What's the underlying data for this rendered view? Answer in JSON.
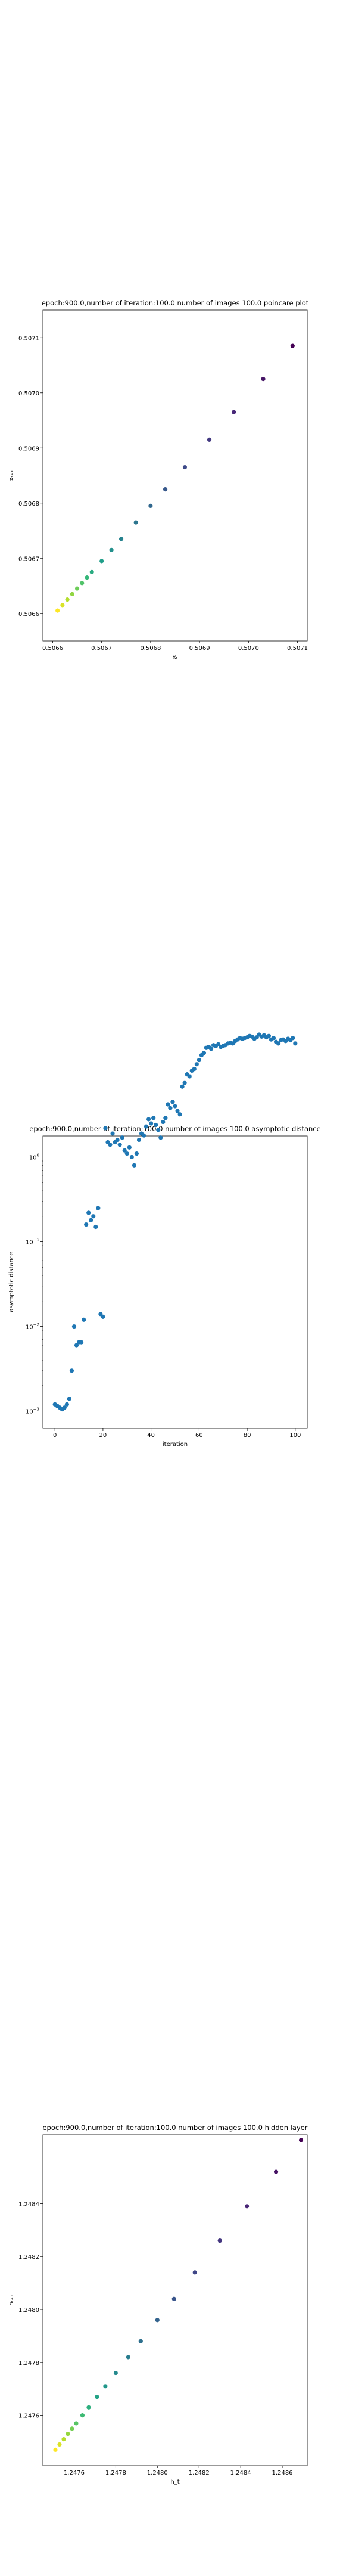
{
  "chart_data": [
    {
      "type": "scatter",
      "title": "epoch:900.0,number of iteration:100.0 number of images 100.0 poincare plot",
      "xlabel": "xₜ",
      "ylabel": "xₜ₊₁",
      "xlim": [
        0.50658,
        0.50712
      ],
      "ylim": [
        0.50655,
        0.50715
      ],
      "xticks": [
        0.5066,
        0.5067,
        0.5068,
        0.5069,
        0.507,
        0.5071
      ],
      "xtick_labels": [
        "0.5066",
        "0.5067",
        "0.5068",
        "0.5069",
        "0.5070",
        "0.5071"
      ],
      "yticks": [
        0.5066,
        0.5067,
        0.5068,
        0.5069,
        0.507,
        0.5071
      ],
      "ytick_labels": [
        "0.5066",
        "0.5067",
        "0.5068",
        "0.5069",
        "0.5070",
        "0.5071"
      ],
      "colormap": "viridis",
      "grid": false,
      "x": [
        0.50661,
        0.50662,
        0.50663,
        0.50664,
        0.50665,
        0.50666,
        0.50667,
        0.50668,
        0.5067,
        0.50672,
        0.50674,
        0.50677,
        0.5068,
        0.50683,
        0.50687,
        0.50692,
        0.50697,
        0.50703,
        0.50709
      ],
      "y": [
        0.506605,
        0.506615,
        0.506625,
        0.506635,
        0.506645,
        0.506655,
        0.506665,
        0.506675,
        0.506695,
        0.506715,
        0.506735,
        0.506765,
        0.506795,
        0.506825,
        0.506865,
        0.506915,
        0.506965,
        0.507025,
        0.507085
      ]
    },
    {
      "type": "scatter",
      "title": "epoch:900.0,number of iteration:100.0  number of images 100.0 asymptotic distance",
      "xlabel": "iteration",
      "ylabel": "asymptotic distance",
      "xlim": [
        -5,
        105
      ],
      "ylim_log10": [
        -3.2,
        0.25
      ],
      "y_scale": "log",
      "xticks": [
        0,
        20,
        40,
        60,
        80,
        100
      ],
      "xtick_labels": [
        "0",
        "20",
        "40",
        "60",
        "80",
        "100"
      ],
      "yticks_log10": [
        -3,
        -2,
        -1,
        0
      ],
      "ytick_bases": [
        "10",
        "10",
        "10",
        "10"
      ],
      "ytick_exps": [
        "−3",
        "−2",
        "−1",
        "0"
      ],
      "color": "#1f77b4",
      "grid": false,
      "x": [
        0,
        1,
        2,
        3,
        4,
        5,
        6,
        7,
        8,
        9,
        10,
        11,
        12,
        13,
        14,
        15,
        16,
        17,
        18,
        19,
        20,
        21,
        22,
        23,
        24,
        25,
        26,
        27,
        28,
        29,
        30,
        31,
        32,
        33,
        34,
        35,
        36,
        37,
        38,
        39,
        40,
        41,
        42,
        43,
        44,
        45,
        46,
        47,
        48,
        49,
        50,
        51,
        52,
        53,
        54,
        55,
        56,
        57,
        58,
        59,
        60,
        61,
        62,
        63,
        64,
        65,
        66,
        67,
        68,
        69,
        70,
        71,
        72,
        73,
        74,
        75,
        76,
        77,
        78,
        79,
        80,
        81,
        82,
        83,
        84,
        85,
        86,
        87,
        88,
        89,
        90,
        91,
        92,
        93,
        94,
        95,
        96,
        97,
        98,
        99,
        100
      ],
      "y": [
        0.0012,
        0.00115,
        0.0011,
        0.00105,
        0.0011,
        0.0012,
        0.0014,
        0.003,
        0.01,
        0.006,
        0.0065,
        0.0065,
        0.012,
        0.16,
        0.22,
        0.18,
        0.2,
        0.15,
        0.25,
        0.014,
        0.013,
        2.2,
        1.5,
        1.4,
        1.9,
        1.5,
        1.6,
        1.4,
        1.7,
        1.2,
        1.1,
        1.3,
        1.0,
        0.8,
        1.1,
        1.6,
        1.9,
        1.8,
        2.3,
        2.8,
        2.5,
        2.9,
        2.4,
        2.1,
        1.7,
        2.6,
        2.9,
        4.2,
        3.8,
        4.5,
        4.0,
        3.5,
        3.2,
        6.8,
        7.5,
        9.5,
        9.0,
        10.5,
        11.0,
        12.5,
        14.0,
        16.0,
        17.0,
        19.5,
        20.0,
        19.0,
        21.0,
        20.5,
        21.5,
        20.0,
        20.5,
        21.0,
        22.0,
        22.5,
        22.0,
        23.5,
        24.5,
        25.5,
        25.0,
        25.5,
        26.0,
        27.0,
        26.5,
        25.0,
        26.0,
        28.0,
        26.5,
        27.5,
        26.0,
        27.0,
        24.5,
        25.5,
        23.0,
        22.0,
        24.0,
        24.5,
        23.5,
        25.0,
        24.0,
        25.5,
        22.0
      ]
    },
    {
      "type": "scatter",
      "title": "epoch:900.0,number of iteration:100.0  number of images 100.0 hidden layer",
      "xlabel": "h_t",
      "ylabel": "hₜ₊₁",
      "xlim": [
        1.24745,
        1.24872
      ],
      "ylim": [
        1.24741,
        1.24866
      ],
      "xticks": [
        1.2476,
        1.2478,
        1.248,
        1.2482,
        1.2484,
        1.2486
      ],
      "xtick_labels": [
        "1.2476",
        "1.2478",
        "1.2480",
        "1.2482",
        "1.2484",
        "1.2486"
      ],
      "yticks": [
        1.2476,
        1.2478,
        1.248,
        1.2482,
        1.2484
      ],
      "ytick_labels": [
        "1.2476",
        "1.2478",
        "1.2480",
        "1.2482",
        "1.2484"
      ],
      "colormap": "viridis",
      "grid": false,
      "x": [
        1.24751,
        1.24753,
        1.24755,
        1.24757,
        1.24759,
        1.24761,
        1.24764,
        1.24767,
        1.24771,
        1.24775,
        1.2478,
        1.24786,
        1.24792,
        1.248,
        1.24808,
        1.24818,
        1.2483,
        1.24843,
        1.24857,
        1.24869
      ],
      "y": [
        1.24747,
        1.24749,
        1.24751,
        1.24753,
        1.24755,
        1.24757,
        1.2476,
        1.24763,
        1.24767,
        1.24771,
        1.24776,
        1.24782,
        1.24788,
        1.24796,
        1.24804,
        1.24814,
        1.24826,
        1.24839,
        1.24852,
        1.24864
      ]
    }
  ]
}
